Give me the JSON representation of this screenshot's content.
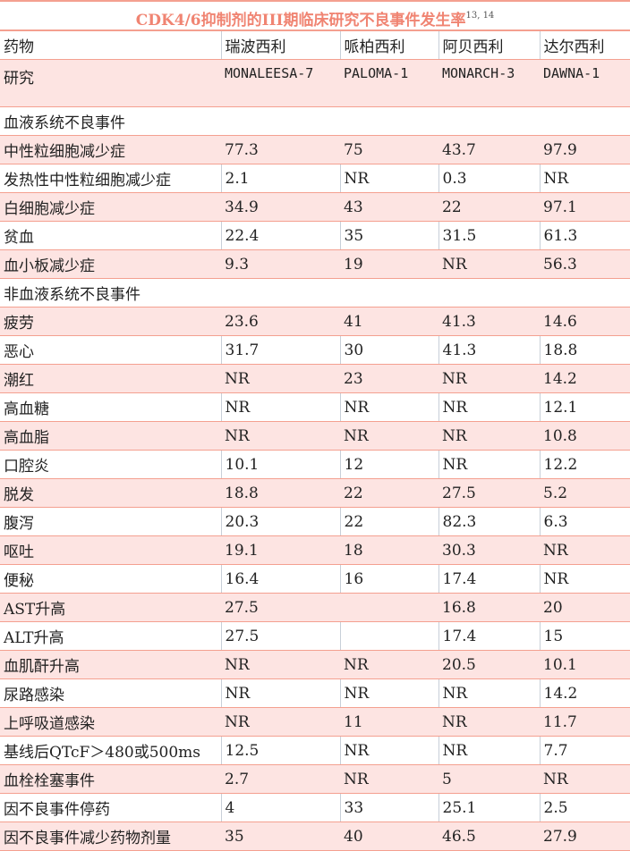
{
  "title": "CDK4/6抑制剂的III期临床研究不良事件发生率",
  "title_ref": "13, 14",
  "header": [
    "药物",
    "瑞波西利",
    "哌柏西利",
    "阿贝西利",
    "达尔西利"
  ],
  "study": [
    "研究",
    "MONALEESA-7",
    "PALOMA-1",
    "MONARCH-3",
    "DAWNA-1"
  ],
  "sections": [
    {
      "label": "血液系统不良事件",
      "rows": [
        [
          "中性粒细胞减少症",
          "77.3",
          "75",
          "43.7",
          "97.9"
        ],
        [
          "发热性中性粒细胞减少症",
          "2.1",
          "NR",
          "0.3",
          "NR"
        ],
        [
          "白细胞减少症",
          "34.9",
          "43",
          "22",
          "97.1"
        ],
        [
          "贫血",
          "22.4",
          "35",
          "31.5",
          "61.3"
        ],
        [
          "血小板减少症",
          "9.3",
          "19",
          "NR",
          "56.3"
        ]
      ]
    },
    {
      "label": "非血液系统不良事件",
      "rows": [
        [
          "疲劳",
          "23.6",
          "41",
          "41.3",
          "14.6"
        ],
        [
          "恶心",
          "31.7",
          "30",
          "41.3",
          "18.8"
        ],
        [
          "潮红",
          "NR",
          "23",
          "NR",
          "14.2"
        ],
        [
          "高血糖",
          "NR",
          "NR",
          "NR",
          "12.1"
        ],
        [
          "高血脂",
          "NR",
          "NR",
          "NR",
          "10.8"
        ],
        [
          "口腔炎",
          "10.1",
          "12",
          "NR",
          "12.2"
        ],
        [
          "脱发",
          "18.8",
          "22",
          "27.5",
          "5.2"
        ],
        [
          "腹泻",
          "20.3",
          "22",
          "82.3",
          "6.3"
        ],
        [
          "呕吐",
          "19.1",
          "18",
          "30.3",
          "NR"
        ],
        [
          "便秘",
          "16.4",
          "16",
          "17.4",
          "NR"
        ],
        [
          "AST升高",
          "27.5",
          "",
          "16.8",
          "20"
        ],
        [
          "ALT升高",
          "27.5",
          "",
          "17.4",
          "15"
        ],
        [
          "血肌酐升高",
          "NR",
          "NR",
          "20.5",
          "10.1"
        ],
        [
          "尿路感染",
          "NR",
          "NR",
          "NR",
          "14.2"
        ],
        [
          "上呼吸道感染",
          "NR",
          "11",
          "NR",
          "11.7"
        ],
        [
          "基线后QTcF＞480或500ms",
          "12.5",
          "NR",
          "NR",
          "7.7"
        ],
        [
          "血栓栓塞事件",
          "2.7",
          "NR",
          "5",
          "NR"
        ],
        [
          "因不良事件停药",
          "4",
          "33",
          "25.1",
          "2.5"
        ],
        [
          "因不良事件减少药物剂量",
          "35",
          "40",
          "46.5",
          "27.9"
        ]
      ]
    }
  ]
}
